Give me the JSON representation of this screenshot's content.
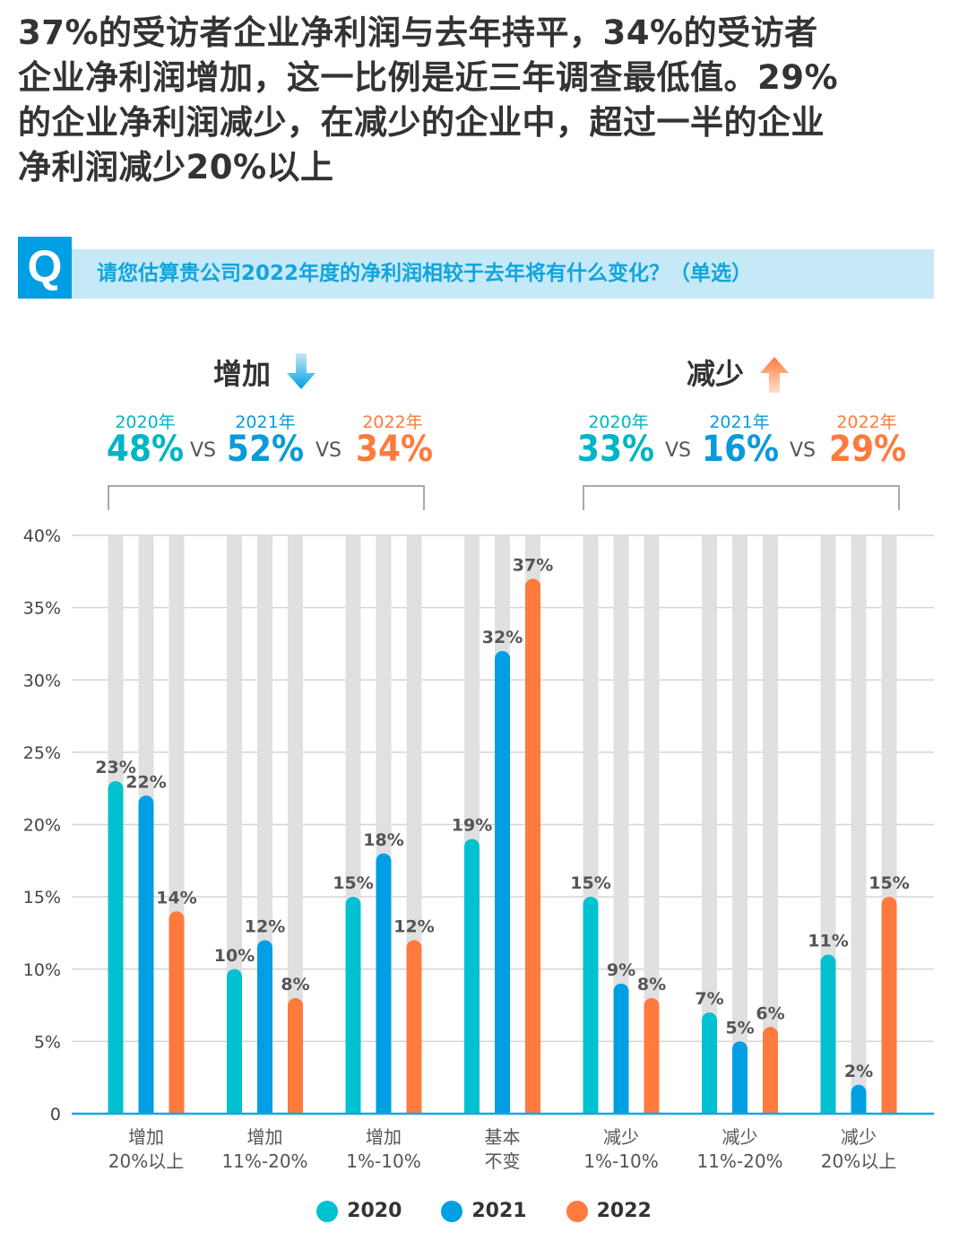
{
  "headline_lines": [
    "37%的受访者企业净利润与去年持平，34%的受访者",
    "企业净利润增加，这一比例是近三年调查最低值。29%",
    "的企业净利润减少，在减少的企业中，超过一半的企业",
    "净利润减少20%以上"
  ],
  "question": {
    "badge": "Q",
    "text": "请您估算贵公司2022年度的净利润相较于去年将有什么变化？（单选）"
  },
  "summary": {
    "increase": {
      "title": "增加",
      "icon": "arrow-down-icon",
      "years": [
        "2020年",
        "2021年",
        "2022年"
      ],
      "values": [
        "48%",
        "52%",
        "34%"
      ],
      "vs": "VS"
    },
    "decrease": {
      "title": "减少",
      "icon": "arrow-up-icon",
      "years": [
        "2020年",
        "2021年",
        "2022年"
      ],
      "values": [
        "33%",
        "16%",
        "29%"
      ],
      "vs": "VS"
    }
  },
  "colors": {
    "2020": "#00C1CF",
    "2021": "#009FE3",
    "2022": "#FF7A3D",
    "track": "#E0E0E2",
    "axis": "#1AA6DE"
  },
  "chart_data": {
    "type": "bar",
    "categories": [
      [
        "增加",
        "20%以上"
      ],
      [
        "增加",
        "11%-20%"
      ],
      [
        "增加",
        "1%-10%"
      ],
      [
        "基本",
        "不变"
      ],
      [
        "减少",
        "1%-10%"
      ],
      [
        "减少",
        "11%-20%"
      ],
      [
        "减少",
        "20%以上"
      ]
    ],
    "series": [
      {
        "name": "2020",
        "values": [
          23,
          10,
          15,
          19,
          15,
          7,
          11
        ]
      },
      {
        "name": "2021",
        "values": [
          22,
          12,
          18,
          32,
          9,
          5,
          2
        ]
      },
      {
        "name": "2022",
        "values": [
          14,
          8,
          12,
          37,
          8,
          6,
          15
        ]
      }
    ],
    "yticks": [
      "0",
      "5%",
      "10%",
      "15%",
      "20%",
      "25%",
      "30%",
      "35%",
      "40%"
    ],
    "ylim": [
      0,
      40
    ],
    "grid": true,
    "legend": "bottom-center",
    "value_suffix": "%"
  }
}
